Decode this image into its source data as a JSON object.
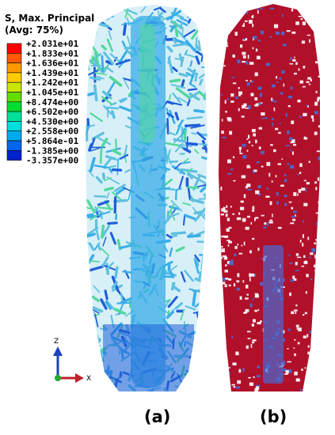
{
  "legend": {
    "title_line1": "S, Max. Principal",
    "title_line2": "(Avg: 75%)",
    "entries": [
      {
        "value": "+2.031e+01",
        "color": "#ff0000"
      },
      {
        "value": "+1.833e+01",
        "color": "#ff5a00"
      },
      {
        "value": "+1.636e+01",
        "color": "#ff9900"
      },
      {
        "value": "+1.439e+01",
        "color": "#ffcc00"
      },
      {
        "value": "+1.242e+01",
        "color": "#c8e600"
      },
      {
        "value": "+1.045e+01",
        "color": "#66dd00"
      },
      {
        "value": "+8.474e+00",
        "color": "#00dd33"
      },
      {
        "value": "+6.502e+00",
        "color": "#00e099"
      },
      {
        "value": "+4.530e+00",
        "color": "#00dddd"
      },
      {
        "value": "+2.558e+00",
        "color": "#00aaee"
      },
      {
        "value": "+5.864e-01",
        "color": "#0066ee"
      },
      {
        "value": "-1.385e+00",
        "color": "#0022cc"
      },
      {
        "value": "-3.357e+00",
        "color": "#000099"
      }
    ]
  },
  "triad": {
    "z_label": "Z",
    "x_label": "X",
    "z_color": "#1f3fbf",
    "x_color": "#c0202a",
    "origin_color": "#22aa33"
  },
  "panels": {
    "a_label": "(a)",
    "b_label": "(b)",
    "a_colors": {
      "base": "#5fc0e0",
      "core": "#3aaee8",
      "dark": "#1f5fd8",
      "green": "#52d89a"
    },
    "b_colors": {
      "base": "#b0102a",
      "hole": "#4a6ad0"
    }
  }
}
